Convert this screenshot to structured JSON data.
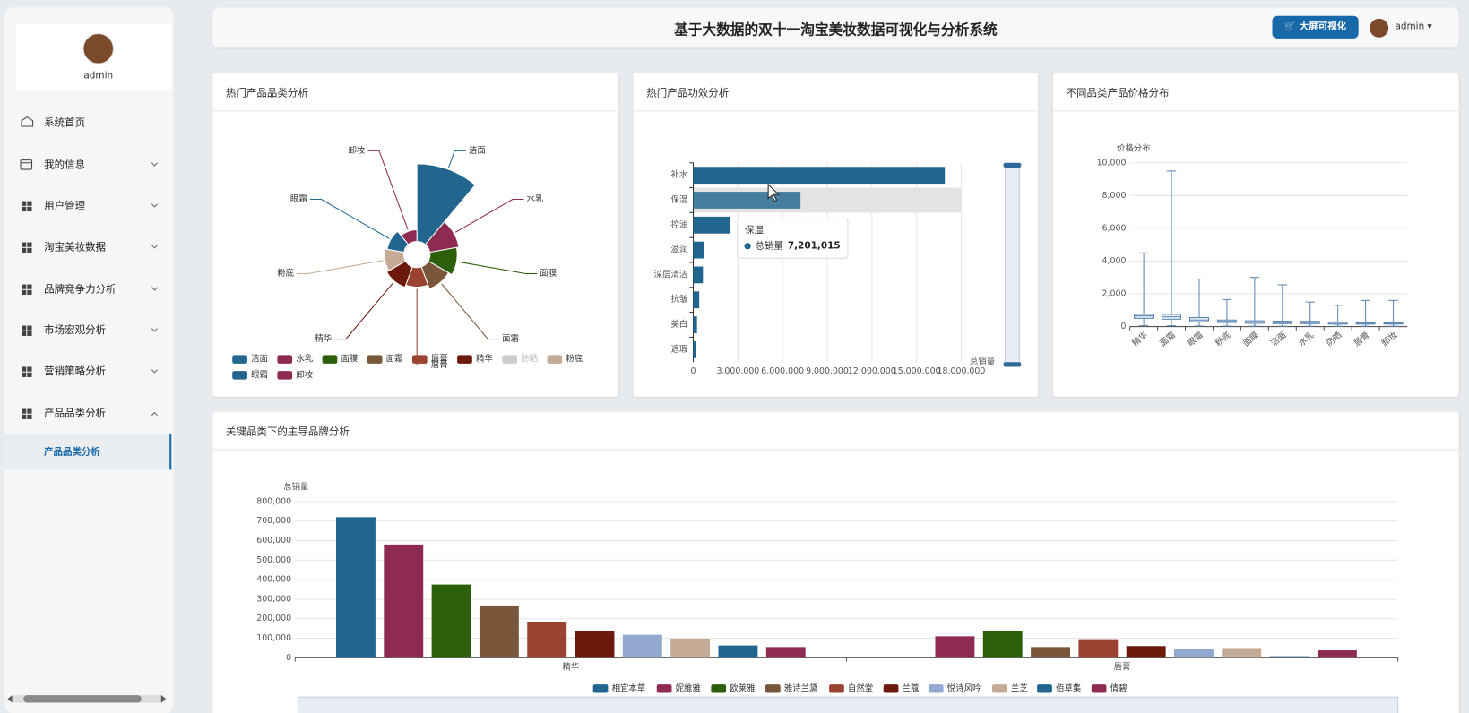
{
  "sidebar": {
    "user": "admin",
    "menu": [
      "系统首页",
      "我的信息",
      "用户管理",
      "淘宝美妆数据",
      "品牌竞争力分析",
      "市场宏观分析",
      "营销策略分析",
      "产品品类分析"
    ],
    "submenu": [
      "产品品类分析"
    ]
  },
  "header": {
    "title": "基于大数据的双十一淘宝美妆数据可视化与分析系统",
    "button": "大屏可视化",
    "user": "admin"
  },
  "chart_data": [
    {
      "type": "pie",
      "title": "热门产品品类分析",
      "categories": [
        "洁面",
        "水乳",
        "面膜",
        "面霜",
        "唇膏",
        "精华",
        "防晒",
        "粉底",
        "眼霜",
        "卸妆"
      ],
      "values": [
        100,
        38,
        35,
        30,
        25,
        28,
        null,
        25,
        22,
        15
      ],
      "colors": [
        "#22668f",
        "#8e2b52",
        "#2c5f0a",
        "#7a573a",
        "#9a4330",
        "#6b1a0c",
        "#b4b4b4",
        "#c5ab96",
        "#22668f",
        "#8e2b52"
      ]
    },
    {
      "type": "bar",
      "orientation": "horizontal",
      "title": "热门产品功效分析",
      "categories": [
        "补水",
        "保湿",
        "控油",
        "滋润",
        "深层清洁",
        "抗皱",
        "美白",
        "遮瑕"
      ],
      "series": [
        {
          "name": "总销量",
          "color": "#22668f",
          "values": [
            16900000,
            7201015,
            2500000,
            700000,
            650000,
            400000,
            250000,
            200000
          ]
        }
      ],
      "xlim": [
        0,
        18000000
      ],
      "xticks": [
        0,
        {
          "value": 3000000,
          "label": "3,000,000"
        },
        {
          "value": 6000000,
          "label": "6,000,000"
        },
        {
          "value": 9000000,
          "label": "9,000,000"
        },
        {
          "value": 12000000,
          "label": "12,000,000"
        },
        {
          "value": 15000000,
          "label": "15,000,000"
        },
        {
          "value": 18000000,
          "label": "18,000,000"
        }
      ],
      "x_label": "总销量",
      "grid": true,
      "tooltip": {
        "index": 1,
        "label": "7,201,015"
      }
    },
    {
      "type": "boxplot",
      "title": "不同品类产品价格分布",
      "categories": [
        "精华",
        "面霜",
        "眼霜",
        "粉底",
        "面膜",
        "洁面",
        "水乳",
        "防晒",
        "唇膏",
        "卸妆"
      ],
      "color": "#5b86b0",
      "boxes": [
        [
          50,
          500,
          650,
          750,
          4500
        ],
        [
          50,
          450,
          600,
          750,
          9500
        ],
        [
          30,
          300,
          400,
          550,
          2900
        ],
        [
          30,
          250,
          320,
          400,
          1650
        ],
        [
          20,
          200,
          280,
          350,
          3000
        ],
        [
          20,
          180,
          250,
          330,
          2550
        ],
        [
          20,
          180,
          250,
          320,
          1500
        ],
        [
          20,
          150,
          200,
          280,
          1300
        ],
        [
          20,
          150,
          200,
          250,
          1600
        ],
        [
          20,
          150,
          200,
          250,
          1600
        ]
      ],
      "ylim": [
        0,
        10000
      ],
      "yticks": [
        0,
        {
          "value": 2000,
          "label": "2,000"
        },
        {
          "value": 4000,
          "label": "4,000"
        },
        {
          "value": 6000,
          "label": "6,000"
        },
        {
          "value": 8000,
          "label": "8,000"
        },
        {
          "value": 10000,
          "label": "10,000"
        }
      ],
      "y_label": "价格分布",
      "grid": true
    },
    {
      "type": "bar",
      "title": "关键品类下的主导品牌分析",
      "categories": [
        "精华",
        "唇膏"
      ],
      "series": [
        {
          "name": "相宜本草",
          "color": "#22668f",
          "values": [
            720000,
            0
          ]
        },
        {
          "name": "妮维雅",
          "color": "#8e2b52",
          "values": [
            580000,
            110000
          ]
        },
        {
          "name": "欧莱雅",
          "color": "#2c5f0a",
          "values": [
            375000,
            135000
          ]
        },
        {
          "name": "雅诗兰黛",
          "color": "#7a573a",
          "values": [
            268000,
            55000
          ]
        },
        {
          "name": "自然堂",
          "color": "#9a4330",
          "values": [
            185000,
            95000
          ]
        },
        {
          "name": "兰蔻",
          "color": "#6b1a0c",
          "values": [
            138000,
            60000
          ]
        },
        {
          "name": "悦诗风吟",
          "color": "#92a8d1",
          "values": [
            118000,
            45000
          ]
        },
        {
          "name": "兰芝",
          "color": "#c5ab96",
          "values": [
            98000,
            50000
          ]
        },
        {
          "name": "佰草集",
          "color": "#22668f",
          "values": [
            63000,
            8000
          ]
        },
        {
          "name": "倩碧",
          "color": "#8e2b52",
          "values": [
            55000,
            38000
          ]
        }
      ],
      "ylim": [
        0,
        800000
      ],
      "yticks": [
        0,
        {
          "value": 100000,
          "label": "100,000"
        },
        {
          "value": 200000,
          "label": "200,000"
        },
        {
          "value": 300000,
          "label": "300,000"
        },
        {
          "value": 400000,
          "label": "400,000"
        },
        {
          "value": 500000,
          "label": "500,000"
        },
        {
          "value": 600000,
          "label": "600,000"
        },
        {
          "value": 700000,
          "label": "700,000"
        },
        {
          "value": 800000,
          "label": "800,000"
        }
      ],
      "y_label": "总销量",
      "grid": true,
      "legend": "bottom"
    }
  ]
}
